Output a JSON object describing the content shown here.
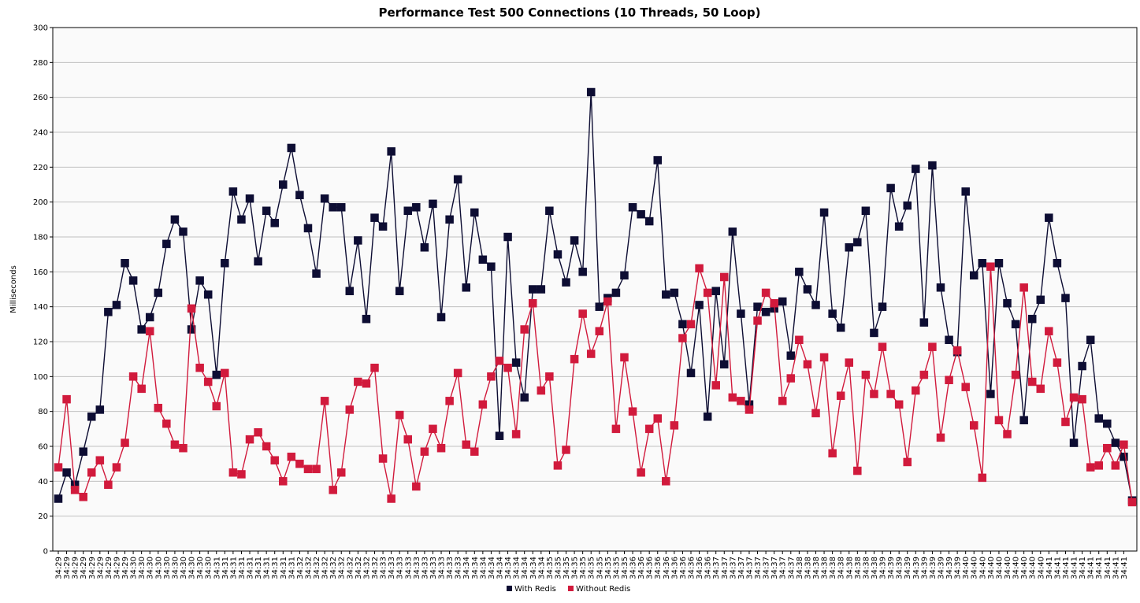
{
  "chart_data": {
    "type": "line",
    "title": "Performance Test 500 Connections (10 Threads, 50 Loop)",
    "xlabel": "",
    "ylabel": "Milliseconds",
    "ylim": [
      0,
      300
    ],
    "yticks": [
      0,
      20,
      40,
      60,
      80,
      100,
      120,
      140,
      160,
      180,
      200,
      220,
      240,
      260,
      280,
      300
    ],
    "grid": true,
    "legend_position": "bottom",
    "colors": {
      "With Redis": "#0d0d33",
      "Without Redis": "#d11a3c",
      "plot_background": "#fafafa",
      "grid": "#c0c0c0"
    },
    "x_tick_labels": [
      "34:29",
      "34:29",
      "34:29",
      "34:29",
      "34:29",
      "34:29",
      "34:29",
      "34:29",
      "34:29",
      "34:30",
      "34:30",
      "34:30",
      "34:30",
      "34:30",
      "34:30",
      "34:30",
      "34:30",
      "34:30",
      "34:30",
      "34:31",
      "34:31",
      "34:31",
      "34:31",
      "34:31",
      "34:31",
      "34:31",
      "34:31",
      "34:31",
      "34:31",
      "34:32",
      "34:32",
      "34:32",
      "34:32",
      "34:32",
      "34:32",
      "34:32",
      "34:32",
      "34:32",
      "34:32",
      "34:33",
      "34:33",
      "34:33",
      "34:33",
      "34:33",
      "34:33",
      "34:33",
      "34:33",
      "34:33",
      "34:33",
      "34:34",
      "34:34",
      "34:34",
      "34:34",
      "34:34",
      "34:34",
      "34:34",
      "34:34",
      "34:34",
      "34:34",
      "34:35",
      "34:35",
      "34:35",
      "34:35",
      "34:35",
      "34:35",
      "34:35",
      "34:35",
      "34:35",
      "34:35",
      "34:36",
      "34:36",
      "34:36",
      "34:36",
      "34:36",
      "34:36",
      "34:36",
      "34:36",
      "34:36",
      "34:36",
      "34:37",
      "34:37",
      "34:37",
      "34:37",
      "34:37",
      "34:37",
      "34:37",
      "34:37",
      "34:37",
      "34:37",
      "34:38",
      "34:38",
      "34:38",
      "34:38",
      "34:38",
      "34:38",
      "34:38",
      "34:38",
      "34:38",
      "34:38",
      "34:39",
      "34:39",
      "34:39",
      "34:39",
      "34:39",
      "34:39",
      "34:39",
      "34:39",
      "34:39",
      "34:39",
      "34:40",
      "34:40",
      "34:40",
      "34:40",
      "34:40",
      "34:40",
      "34:40",
      "34:40",
      "34:40",
      "34:40",
      "34:41",
      "34:41",
      "34:41",
      "34:41",
      "34:41",
      "34:41",
      "34:41",
      "34:41",
      "34:41",
      "34:41"
    ],
    "series": [
      {
        "name": "With Redis",
        "values": [
          30,
          45,
          38,
          57,
          77,
          81,
          137,
          141,
          165,
          155,
          127,
          134,
          148,
          176,
          190,
          183,
          127,
          155,
          147,
          101,
          165,
          206,
          190,
          202,
          166,
          195,
          188,
          210,
          231,
          204,
          185,
          159,
          202,
          197,
          197,
          149,
          178,
          133,
          191,
          186,
          229,
          149,
          195,
          197,
          174,
          199,
          134,
          190,
          213,
          151,
          194,
          167,
          163,
          66,
          180,
          108,
          88,
          150,
          150,
          195,
          170,
          154,
          178,
          160,
          263,
          140,
          145,
          148,
          158,
          197,
          193,
          189,
          224,
          147,
          148,
          130,
          102,
          141,
          77,
          149,
          107,
          183,
          136,
          84,
          140,
          137,
          139,
          143,
          112,
          160,
          150,
          141,
          194,
          136,
          128,
          174,
          177,
          195,
          125,
          140,
          208,
          186,
          198,
          219,
          131,
          221,
          151,
          121,
          114,
          206,
          158,
          165,
          90,
          165,
          142,
          130,
          75,
          133,
          144,
          191,
          165,
          145,
          62,
          106,
          121,
          76,
          73,
          62,
          54,
          29
        ]
      },
      {
        "name": "Without Redis",
        "values": [
          48,
          87,
          35,
          31,
          45,
          52,
          38,
          48,
          62,
          100,
          93,
          126,
          82,
          73,
          61,
          59,
          139,
          105,
          97,
          83,
          102,
          45,
          44,
          64,
          68,
          60,
          52,
          40,
          54,
          50,
          47,
          47,
          86,
          35,
          45,
          81,
          97,
          96,
          105,
          53,
          30,
          78,
          64,
          37,
          57,
          70,
          59,
          86,
          102,
          61,
          57,
          84,
          100,
          109,
          105,
          67,
          127,
          142,
          92,
          100,
          49,
          58,
          110,
          136,
          113,
          126,
          143,
          70,
          111,
          80,
          45,
          70,
          76,
          40,
          72,
          122,
          130,
          162,
          148,
          95,
          157,
          88,
          86,
          81,
          132,
          148,
          142,
          86,
          99,
          121,
          107,
          79,
          111,
          56,
          89,
          108,
          46,
          101,
          90,
          117,
          90,
          84,
          51,
          92,
          101,
          117,
          65,
          98,
          115,
          94,
          72,
          42,
          163,
          75,
          67,
          101,
          151,
          97,
          93,
          126,
          108,
          74,
          88,
          87,
          48,
          49,
          59,
          49,
          61,
          28
        ]
      }
    ]
  }
}
